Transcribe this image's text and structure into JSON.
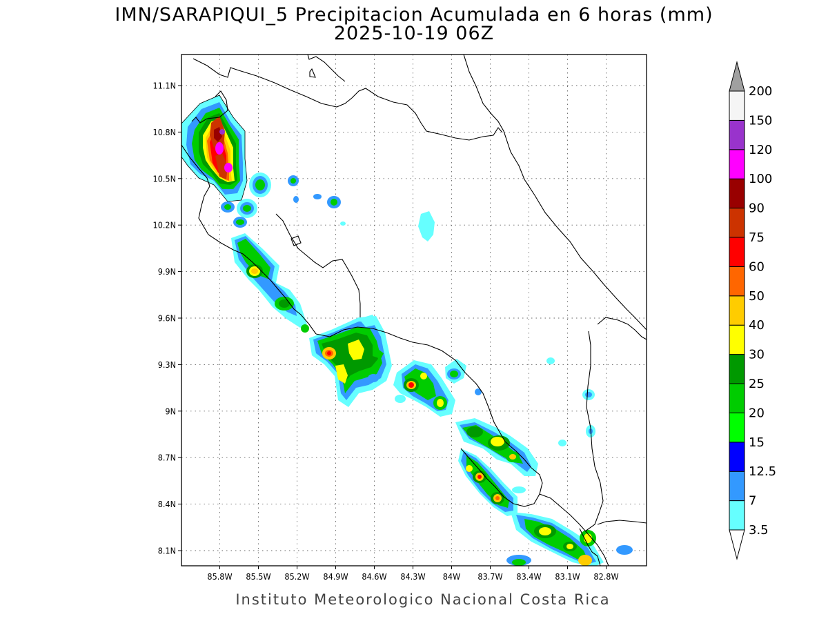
{
  "map": {
    "title_line_1": "IMN/SARAPIQUI_5 Precipitacion Acumulada en 6 horas (mm)",
    "title_line_2": "2025-10-19 06Z",
    "credit": "Instituto Meteorologico Nacional Costa Rica",
    "lon_ticks": [
      {
        "value": -85.8,
        "label": "85.8W"
      },
      {
        "value": -85.5,
        "label": "85.5W"
      },
      {
        "value": -85.2,
        "label": "85.2W"
      },
      {
        "value": -84.9,
        "label": "84.9W"
      },
      {
        "value": -84.6,
        "label": "84.6W"
      },
      {
        "value": -84.3,
        "label": "84.3W"
      },
      {
        "value": -84.0,
        "label": "84W"
      },
      {
        "value": -83.7,
        "label": "83.7W"
      },
      {
        "value": -83.4,
        "label": "83.4W"
      },
      {
        "value": -83.1,
        "label": "83.1W"
      },
      {
        "value": -82.8,
        "label": "82.8W"
      }
    ],
    "lat_ticks": [
      {
        "value": 11.1,
        "label": "11.1N"
      },
      {
        "value": 10.8,
        "label": "10.8N"
      },
      {
        "value": 10.5,
        "label": "10.5N"
      },
      {
        "value": 10.2,
        "label": "10.2N"
      },
      {
        "value": 9.9,
        "label": "9.9N"
      },
      {
        "value": 9.6,
        "label": "9.6N"
      },
      {
        "value": 9.3,
        "label": "9.3N"
      },
      {
        "value": 9.0,
        "label": "9N"
      },
      {
        "value": 8.7,
        "label": "8.7N"
      },
      {
        "value": 8.4,
        "label": "8.4N"
      },
      {
        "value": 8.1,
        "label": "8.1N"
      }
    ],
    "grid": "dotted",
    "legend": {
      "position": "right",
      "levels": [
        {
          "label": "3.5",
          "color": "#66ffff"
        },
        {
          "label": "7",
          "color": "#3399ff"
        },
        {
          "label": "12.5",
          "color": "#0000ff"
        },
        {
          "label": "15",
          "color": "#00ff00"
        },
        {
          "label": "20",
          "color": "#00cc00"
        },
        {
          "label": "25",
          "color": "#009900"
        },
        {
          "label": "30",
          "color": "#ffff00"
        },
        {
          "label": "40",
          "color": "#ffcc00"
        },
        {
          "label": "50",
          "color": "#ff6600"
        },
        {
          "label": "60",
          "color": "#ff0000"
        },
        {
          "label": "75",
          "color": "#cc3300"
        },
        {
          "label": "90",
          "color": "#990000"
        },
        {
          "label": "100",
          "color": "#ff00ff"
        },
        {
          "label": "120",
          "color": "#9933cc"
        },
        {
          "label": "150",
          "color": "#f5f5f5"
        },
        {
          "label": "200",
          "color": "#a0a0a0"
        }
      ],
      "below_color": "#ffffff",
      "above_color": "#a0a0a0"
    }
  }
}
